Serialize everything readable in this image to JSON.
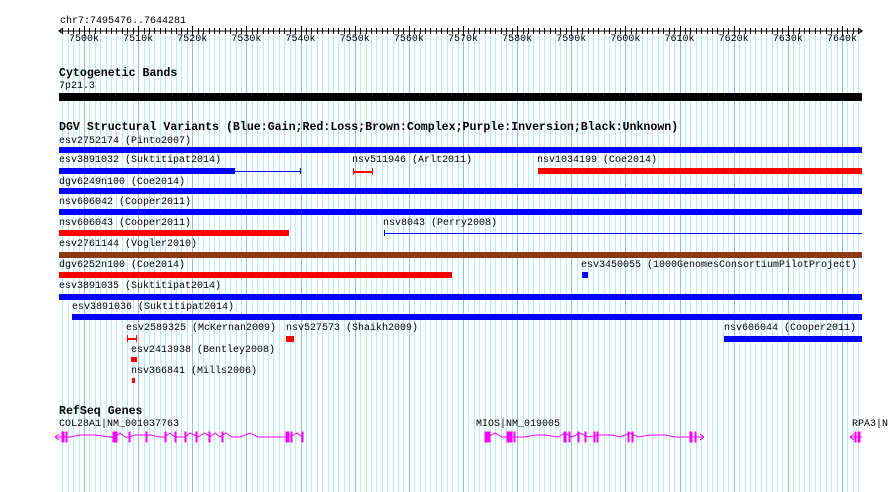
{
  "ruler": {
    "region": "chr7:7495476..7644281",
    "ticks": [
      "7500k",
      "7510k",
      "7520k",
      "7530k",
      "7540k",
      "7550k",
      "7560k",
      "7570k",
      "7580k",
      "7590k",
      "7600k",
      "7610k",
      "7620k",
      "7630k",
      "7640k"
    ]
  },
  "cytobands": {
    "title": "Cytogenetic Bands",
    "band": "7p21.3"
  },
  "dgv": {
    "title": "DGV Structural Variants (Blue:Gain;Red:Loss;Brown:Complex;Purple:Inversion;Black:Unknown)",
    "features": [
      "esv2752174 (Pinto2007)",
      "esv3891032 (Suktitipat2014)",
      "nsv511946 (Arlt2011)",
      "nsv1034199 (Coe2014)",
      "dgv6249n100 (Coe2014)",
      "nsv606042 (Cooper2011)",
      "nsv606043 (Cooper2011)",
      "nsv8043 (Perry2008)",
      "esv2761144 (Vogler2010)",
      "dgv6252n100 (Coe2014)",
      "esv3450055 (1000GenomesConsortiumPilotProject)",
      "esv3891035 (Suktitipat2014)",
      "esv3891036 (Suktitipat2014)",
      "esv2589325 (McKernan2009)",
      "nsv527573 (Shaikh2009)",
      "nsv606044 (Cooper2011)",
      "esv2413938 (Bentley2008)",
      "nsv366841 (Mills2006)"
    ]
  },
  "refseq": {
    "title": "RefSeq Genes",
    "genes": [
      "COL28A1|NM_001037763",
      "MIOS|NM_019005",
      "RPA3|N"
    ]
  },
  "colors": {
    "gain": "#0000ff",
    "loss": "#ff0000",
    "complex": "#8b3a0f",
    "gene": "#ff00ff",
    "grid_major": "#8cc0ee",
    "grid_minor": "#b8eef0"
  }
}
